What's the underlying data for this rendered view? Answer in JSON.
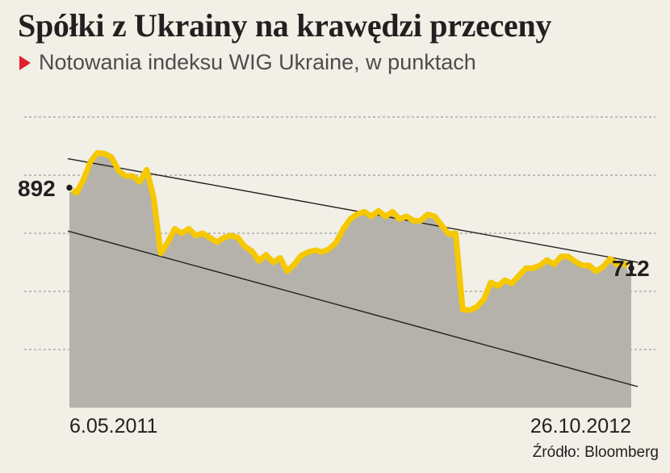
{
  "header": {
    "title": "Spółki z Ukrainy na krawędzi przeceny",
    "subtitle": "Notowania indeksu WIG Ukraine, w punktach"
  },
  "source": "Źródło: Bloomberg",
  "colors": {
    "line": "#f5c800",
    "area": "#b5b2ab",
    "background": "#f1efe6",
    "marker": "#e0202b",
    "text": "#231f20"
  },
  "chart_data": {
    "type": "area",
    "title": "Spółki z Ukrainy na krawędzi przeceny",
    "subtitle": "Notowania indeksu WIG Ukraine, w punktach",
    "x_start_label": "6.05.2011",
    "x_end_label": "26.10.2012",
    "start_value_label": "892",
    "end_value_label": "712",
    "ylim": [
      400,
      1050
    ],
    "grid": true,
    "legend": "none",
    "series": [
      {
        "values": [
          892,
          880,
          910,
          950,
          970,
          968,
          960,
          930,
          918,
          918,
          905,
          932,
          870,
          745,
          770,
          800,
          790,
          800,
          785,
          790,
          780,
          770,
          780,
          785,
          780,
          760,
          750,
          728,
          742,
          725,
          735,
          705,
          720,
          740,
          748,
          752,
          748,
          755,
          770,
          800,
          822,
          833,
          838,
          828,
          840,
          828,
          838,
          822,
          828,
          818,
          818,
          832,
          828,
          808,
          788,
          790,
          620,
          618,
          625,
          642,
          680,
          672,
          685,
          678,
          695,
          712,
          712,
          718,
          730,
          720,
          738,
          738,
          727,
          718,
          718,
          705,
          715,
          733,
          720,
          722,
          712
        ]
      }
    ],
    "trend_lines": [
      {
        "from": [
          0,
          957
        ],
        "to": [
          80,
          725
        ]
      },
      {
        "from": [
          0,
          795
        ],
        "to": [
          80,
          447
        ]
      }
    ]
  }
}
